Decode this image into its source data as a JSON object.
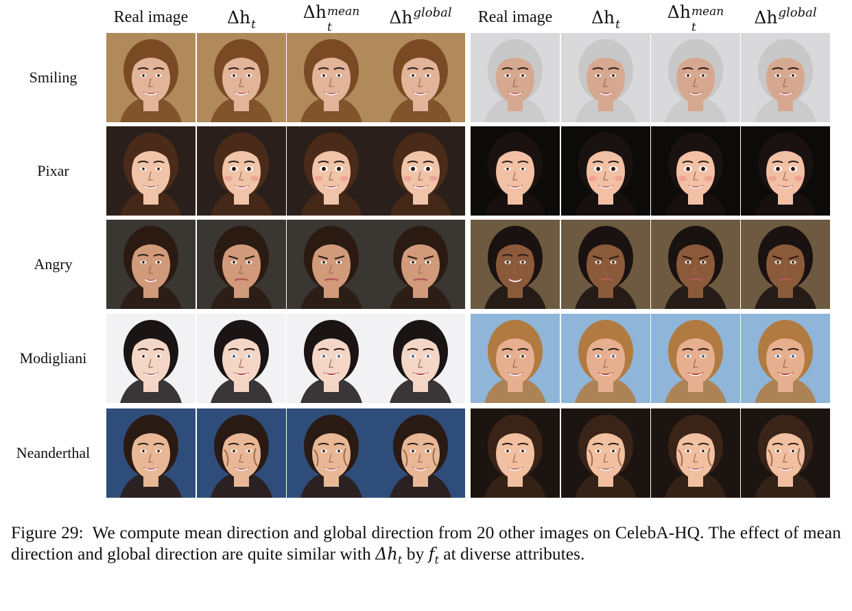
{
  "headers": {
    "real": "Real image",
    "dh_base": "Δh",
    "dh_sub": "t",
    "mean_sup": "mean",
    "global_sup": "global"
  },
  "rows": [
    {
      "label": "Smiling"
    },
    {
      "label": "Pixar"
    },
    {
      "label": "Angry"
    },
    {
      "label": "Modigliani"
    },
    {
      "label": "Neanderthal"
    }
  ],
  "caption": {
    "prefix": "Figure 29:",
    "text1": "We compute mean direction and global direction from 20 other images on CelebA-HQ. The effect of mean direction and global direction are quite similar with",
    "math1_base": "Δh",
    "math1_sub": "t",
    "text2": "by",
    "math2_base": "f",
    "math2_sub": "t",
    "text3": "at diverse attributes."
  },
  "palette": {
    "bg": [
      "#b08a5a",
      "#2a1f1a",
      "#3a3632",
      "#f2f2f4",
      "#2f4d7a"
    ],
    "bg_right": [
      "#d9d9dc",
      "#0d0b0a",
      "#6e5a40",
      "#8fb5d8",
      "#1c1410"
    ],
    "skin_left": [
      "#e2b49a",
      "#f0c4a8",
      "#d19a7a",
      "#f4d6c6",
      "#e8b896"
    ],
    "skin_right": [
      "#d6a890",
      "#f2c0a4",
      "#8a5a3a",
      "#e6b090",
      "#f0c0a0"
    ],
    "hair_left": [
      "#7a4a24",
      "#4a2a18",
      "#2a1a12",
      "#1a1414",
      "#2a1a14"
    ],
    "hair_right": [
      "#c8c8c8",
      "#1a1210",
      "#1a1210",
      "#b07a40",
      "#3a2418"
    ]
  }
}
